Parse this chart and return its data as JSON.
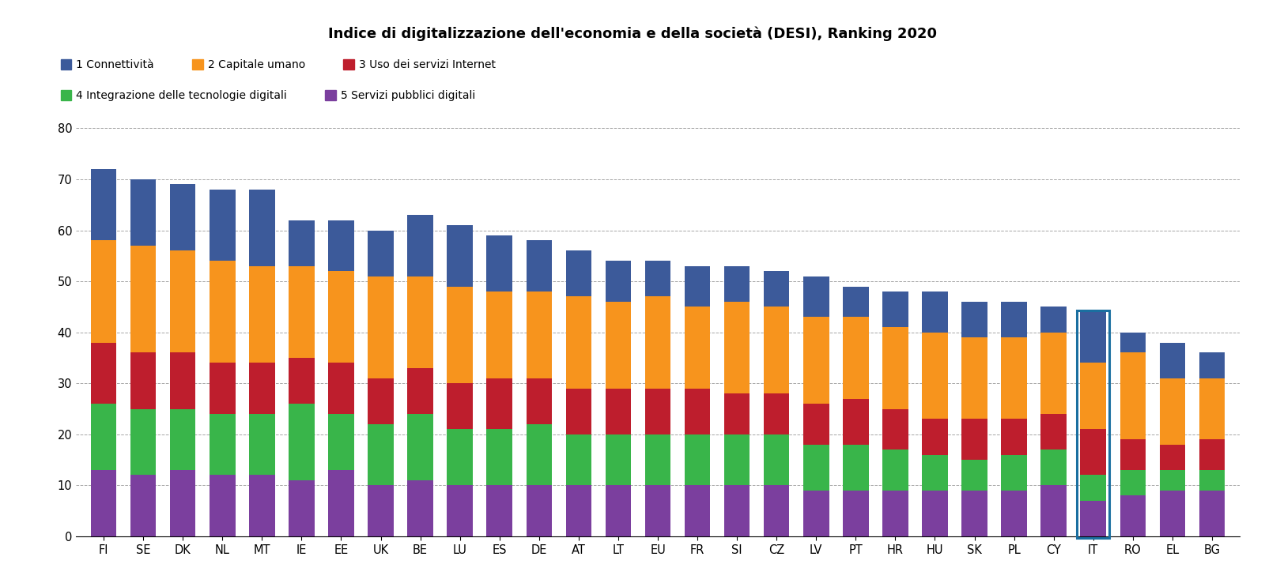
{
  "title": "Indice di digitalizzazione dell'economia e della società (DESI), Ranking 2020",
  "categories": [
    "FI",
    "SE",
    "DK",
    "NL",
    "MT",
    "IE",
    "EE",
    "UK",
    "BE",
    "LU",
    "ES",
    "DE",
    "AT",
    "LT",
    "EU",
    "FR",
    "SI",
    "CZ",
    "LV",
    "PT",
    "HR",
    "HU",
    "SK",
    "PL",
    "CY",
    "IT",
    "RO",
    "EL",
    "BG"
  ],
  "legend_labels": [
    "1 Connettività",
    "2 Capitale umano",
    "3 Uso dei servizi Internet",
    "4 Integrazione delle tecnologie digitali",
    "5 Servizi pubblici digitali"
  ],
  "colors": [
    "#3C5A9A",
    "#F7941D",
    "#BE1E2D",
    "#39B54A",
    "#7B3F9E"
  ],
  "highlighted_bar": "IT",
  "highlight_color": "#1A6FA0",
  "data": {
    "5_servizi": [
      13,
      12,
      13,
      12,
      12,
      11,
      13,
      10,
      11,
      10,
      10,
      10,
      10,
      10,
      10,
      10,
      10,
      10,
      9,
      9,
      9,
      9,
      9,
      9,
      10,
      7,
      8,
      9,
      9
    ],
    "4_integrazione": [
      13,
      13,
      12,
      12,
      12,
      15,
      11,
      12,
      13,
      11,
      11,
      12,
      10,
      10,
      10,
      10,
      10,
      10,
      9,
      9,
      8,
      7,
      6,
      7,
      7,
      5,
      5,
      4,
      4
    ],
    "3_uso_internet": [
      12,
      11,
      11,
      10,
      10,
      9,
      10,
      9,
      9,
      9,
      10,
      9,
      9,
      9,
      9,
      9,
      8,
      8,
      8,
      9,
      8,
      7,
      8,
      7,
      7,
      9,
      6,
      5,
      6
    ],
    "2_capitale_umano": [
      20,
      21,
      20,
      20,
      19,
      18,
      18,
      20,
      18,
      19,
      17,
      17,
      18,
      17,
      18,
      16,
      18,
      17,
      17,
      16,
      16,
      17,
      16,
      16,
      16,
      13,
      17,
      13,
      12
    ],
    "1_connettivita": [
      14,
      13,
      13,
      14,
      15,
      9,
      10,
      9,
      12,
      12,
      11,
      10,
      9,
      8,
      7,
      8,
      7,
      7,
      8,
      6,
      7,
      8,
      7,
      7,
      5,
      10,
      4,
      7,
      5
    ]
  },
  "ylim": [
    0,
    80
  ],
  "yticks": [
    0,
    10,
    20,
    30,
    40,
    50,
    60,
    70,
    80
  ],
  "figsize": [
    16.0,
    7.38
  ],
  "dpi": 100
}
